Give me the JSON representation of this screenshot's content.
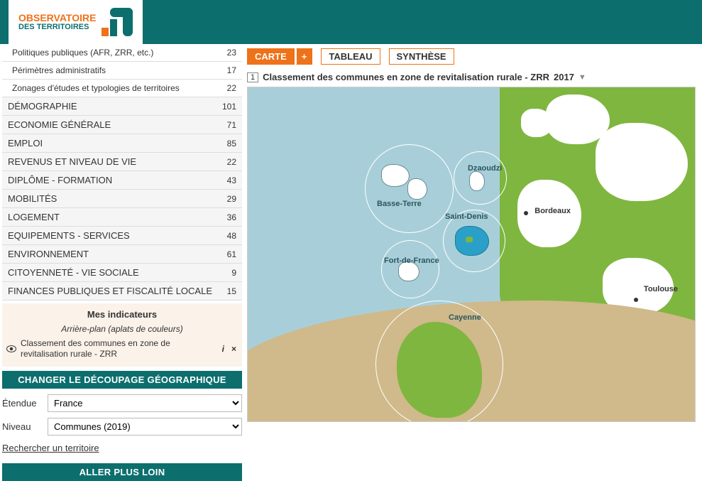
{
  "logo": {
    "line1": "OBSERVATOIRE",
    "des": "DES",
    "terr": "TERRITOIRES"
  },
  "categories": [
    {
      "label": "Politiques publiques (AFR, ZRR, etc.)",
      "count": 23,
      "sub": true
    },
    {
      "label": "Périmètres administratifs",
      "count": 17,
      "sub": true
    },
    {
      "label": "Zonages d'études et typologies de territoires",
      "count": 22,
      "sub": true
    },
    {
      "label": "DÉMOGRAPHIE",
      "count": 101
    },
    {
      "label": "ECONOMIE GÉNÉRALE",
      "count": 71
    },
    {
      "label": "EMPLOI",
      "count": 85
    },
    {
      "label": "REVENUS ET NIVEAU DE VIE",
      "count": 22
    },
    {
      "label": "DIPLÔME - FORMATION",
      "count": 43
    },
    {
      "label": "MOBILITÉS",
      "count": 29
    },
    {
      "label": "LOGEMENT",
      "count": 36
    },
    {
      "label": "EQUIPEMENTS - SERVICES",
      "count": 48
    },
    {
      "label": "ENVIRONNEMENT",
      "count": 61
    },
    {
      "label": "CITOYENNETÉ - VIE SOCIALE",
      "count": 9
    },
    {
      "label": "FINANCES PUBLIQUES ET FISCALITÉ LOCALE",
      "count": 15
    }
  ],
  "indicators": {
    "title": "Mes indicateurs",
    "subtitle": "Arrière-plan (aplats de couleurs)",
    "item": "Classement des communes en zone de revitalisation rurale - ZRR",
    "info": "i",
    "close": "×"
  },
  "changeGeo": "CHANGER LE DÉCOUPAGE GÉOGRAPHIQUE",
  "etendue": {
    "label": "Étendue",
    "value": "France"
  },
  "niveau": {
    "label": "Niveau",
    "value": "Communes (2019)"
  },
  "searchLink": "Rechercher un territoire",
  "allerPlus": "ALLER PLUS LOIN",
  "tabs": {
    "carte": "CARTE",
    "plus": "+",
    "tableau": "TABLEAU",
    "synthese": "SYNTHÈSE"
  },
  "mapTitle": {
    "num": "1",
    "text": "Classement des communes en zone de revitalisation rurale - ZRR",
    "year": "2017"
  },
  "mapLabels": {
    "dzaoudzi": "Dzaoudzi",
    "basseTerre": "Basse-Terre",
    "saintDenis": "Saint-Denis",
    "fortDeFrance": "Fort-de-France",
    "cayenne": "Cayenne",
    "bordeaux": "Bordeaux",
    "toulouse": "Toulouse"
  },
  "colors": {
    "brand": "#ee7219",
    "teal": "#0d6e6e",
    "sea": "#a8cfd9",
    "green": "#7fb640",
    "sand": "#d0b98b",
    "reunion": "#2aa0c8"
  }
}
